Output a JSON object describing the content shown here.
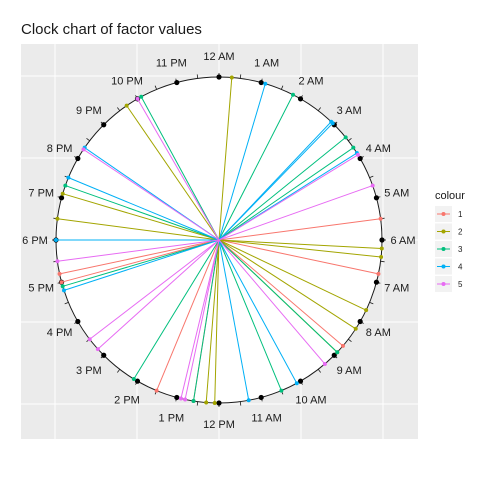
{
  "chart_data": {
    "type": "clock-radial-lines",
    "title": "Clock chart of factor values",
    "hour_labels": [
      "12 AM",
      "1 AM",
      "2 AM",
      "3 AM",
      "4 AM",
      "5 AM",
      "6 AM",
      "7 AM",
      "8 AM",
      "9 AM",
      "10 AM",
      "11 AM",
      "12 PM",
      "1 PM",
      "2 PM",
      "3 PM",
      "4 PM",
      "5 PM",
      "6 PM",
      "7 PM",
      "8 PM",
      "9 PM",
      "10 PM",
      "11 PM"
    ],
    "grid": true,
    "legend": {
      "title": "colour",
      "placement": "right"
    },
    "series": [
      {
        "name": "1",
        "color": "#F8766D",
        "times": [
          5.5,
          6.8,
          8.7,
          12.6,
          13.5,
          17.0,
          17.2
        ]
      },
      {
        "name": "2",
        "color": "#A3A500",
        "times": [
          0.3,
          6.2,
          6.4,
          7.7,
          8.2,
          8.9,
          12.1,
          12.3,
          18.5,
          19.1,
          21.7
        ]
      },
      {
        "name": "3",
        "color": "#00BF7D",
        "times": [
          1.8,
          3.4,
          3.7,
          8.9,
          10.5,
          12.6,
          14.1,
          16.9,
          19.3,
          22.1
        ]
      },
      {
        "name": "4",
        "color": "#00B0F6",
        "times": [
          1.1,
          2.9,
          2.95,
          3.85,
          10.1,
          11.3,
          16.8,
          18.0,
          19.5,
          20.3
        ]
      },
      {
        "name": "5",
        "color": "#E76BF3",
        "times": [
          3.9,
          4.7,
          9.3,
          12.8,
          12.9,
          15.2,
          15.5,
          17.5,
          20.25,
          22.0
        ]
      }
    ]
  }
}
